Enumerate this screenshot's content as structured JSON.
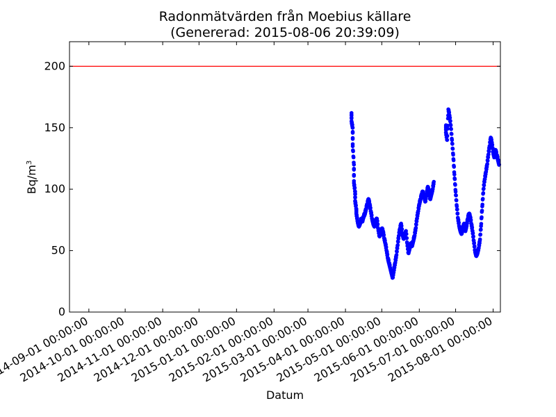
{
  "chart_data": {
    "type": "scatter",
    "title": "Radonmätvärden från Moebius källare",
    "subtitle": "(Genererad: 2015-08-06 20:39:09)",
    "xlabel": "Datum",
    "ylabel": "Bq/m",
    "ylabel_sup": "3",
    "xlim": [
      "2014-08-16",
      "2015-08-07"
    ],
    "ylim": [
      0,
      220
    ],
    "yticks": [
      0,
      50,
      100,
      150,
      200
    ],
    "xticks": [
      "2014-09-01 00:00:00",
      "2014-10-01 00:00:00",
      "2014-11-01 00:00:00",
      "2014-12-01 00:00:00",
      "2015-01-01 00:00:00",
      "2015-02-01 00:00:00",
      "2015-03-01 00:00:00",
      "2015-04-01 00:00:00",
      "2015-05-01 00:00:00",
      "2015-06-01 00:00:00",
      "2015-07-01 00:00:00",
      "2015-08-01 00:00:00"
    ],
    "grid": false,
    "threshold": {
      "value": 200,
      "color": "#ff0000"
    },
    "series": [
      {
        "color": "#0000ff",
        "points": [
          [
            "2015-04-06",
            162
          ],
          [
            "2015-04-06",
            155
          ],
          [
            "2015-04-07",
            150
          ],
          [
            "2015-04-07",
            135
          ],
          [
            "2015-04-08",
            120
          ],
          [
            "2015-04-08",
            105
          ],
          [
            "2015-04-09",
            98
          ],
          [
            "2015-04-09",
            90
          ],
          [
            "2015-04-10",
            84
          ],
          [
            "2015-04-10",
            80
          ],
          [
            "2015-04-11",
            74
          ],
          [
            "2015-04-12",
            70
          ],
          [
            "2015-04-13",
            72
          ],
          [
            "2015-04-14",
            76
          ],
          [
            "2015-04-15",
            74
          ],
          [
            "2015-04-16",
            78
          ],
          [
            "2015-04-17",
            80
          ],
          [
            "2015-04-18",
            84
          ],
          [
            "2015-04-19",
            88
          ],
          [
            "2015-04-20",
            92
          ],
          [
            "2015-04-21",
            88
          ],
          [
            "2015-04-22",
            82
          ],
          [
            "2015-04-23",
            76
          ],
          [
            "2015-04-24",
            72
          ],
          [
            "2015-04-25",
            70
          ],
          [
            "2015-04-26",
            74
          ],
          [
            "2015-04-27",
            76
          ],
          [
            "2015-04-28",
            68
          ],
          [
            "2015-04-29",
            62
          ],
          [
            "2015-04-30",
            64
          ],
          [
            "2015-05-01",
            68
          ],
          [
            "2015-05-02",
            66
          ],
          [
            "2015-05-03",
            60
          ],
          [
            "2015-05-04",
            56
          ],
          [
            "2015-05-05",
            50
          ],
          [
            "2015-05-06",
            44
          ],
          [
            "2015-05-07",
            40
          ],
          [
            "2015-05-08",
            36
          ],
          [
            "2015-05-09",
            32
          ],
          [
            "2015-05-10",
            28
          ],
          [
            "2015-05-11",
            34
          ],
          [
            "2015-05-12",
            40
          ],
          [
            "2015-05-13",
            46
          ],
          [
            "2015-05-14",
            54
          ],
          [
            "2015-05-15",
            62
          ],
          [
            "2015-05-16",
            68
          ],
          [
            "2015-05-17",
            72
          ],
          [
            "2015-05-18",
            64
          ],
          [
            "2015-05-19",
            60
          ],
          [
            "2015-05-20",
            62
          ],
          [
            "2015-05-21",
            66
          ],
          [
            "2015-05-22",
            56
          ],
          [
            "2015-05-23",
            48
          ],
          [
            "2015-05-24",
            52
          ],
          [
            "2015-05-25",
            56
          ],
          [
            "2015-05-26",
            54
          ],
          [
            "2015-05-27",
            58
          ],
          [
            "2015-05-28",
            62
          ],
          [
            "2015-05-29",
            68
          ],
          [
            "2015-05-30",
            76
          ],
          [
            "2015-05-31",
            82
          ],
          [
            "2015-06-01",
            88
          ],
          [
            "2015-06-02",
            92
          ],
          [
            "2015-06-03",
            96
          ],
          [
            "2015-06-04",
            98
          ],
          [
            "2015-06-05",
            94
          ],
          [
            "2015-06-06",
            90
          ],
          [
            "2015-06-07",
            96
          ],
          [
            "2015-06-08",
            102
          ],
          [
            "2015-06-09",
            98
          ],
          [
            "2015-06-10",
            92
          ],
          [
            "2015-06-11",
            96
          ],
          [
            "2015-06-12",
            100
          ],
          [
            "2015-06-13",
            106
          ],
          [
            "2015-06-23",
            152
          ],
          [
            "2015-06-23",
            146
          ],
          [
            "2015-06-24",
            140
          ],
          [
            "2015-06-25",
            165
          ],
          [
            "2015-06-26",
            160
          ],
          [
            "2015-06-27",
            152
          ],
          [
            "2015-06-28",
            140
          ],
          [
            "2015-06-29",
            128
          ],
          [
            "2015-06-30",
            112
          ],
          [
            "2015-07-01",
            98
          ],
          [
            "2015-07-02",
            86
          ],
          [
            "2015-07-03",
            76
          ],
          [
            "2015-07-04",
            70
          ],
          [
            "2015-07-05",
            66
          ],
          [
            "2015-07-06",
            64
          ],
          [
            "2015-07-07",
            68
          ],
          [
            "2015-07-08",
            72
          ],
          [
            "2015-07-09",
            66
          ],
          [
            "2015-07-10",
            70
          ],
          [
            "2015-07-11",
            76
          ],
          [
            "2015-07-12",
            80
          ],
          [
            "2015-07-13",
            78
          ],
          [
            "2015-07-14",
            72
          ],
          [
            "2015-07-15",
            66
          ],
          [
            "2015-07-16",
            58
          ],
          [
            "2015-07-17",
            50
          ],
          [
            "2015-07-18",
            46
          ],
          [
            "2015-07-19",
            48
          ],
          [
            "2015-07-20",
            52
          ],
          [
            "2015-07-21",
            58
          ],
          [
            "2015-07-22",
            70
          ],
          [
            "2015-07-23",
            86
          ],
          [
            "2015-07-24",
            100
          ],
          [
            "2015-07-25",
            108
          ],
          [
            "2015-07-26",
            114
          ],
          [
            "2015-07-27",
            120
          ],
          [
            "2015-07-28",
            128
          ],
          [
            "2015-07-29",
            135
          ],
          [
            "2015-07-30",
            142
          ],
          [
            "2015-07-31",
            138
          ],
          [
            "2015-08-01",
            130
          ],
          [
            "2015-08-02",
            126
          ],
          [
            "2015-08-03",
            132
          ],
          [
            "2015-08-04",
            128
          ],
          [
            "2015-08-05",
            124
          ],
          [
            "2015-08-06",
            120
          ]
        ]
      }
    ]
  }
}
